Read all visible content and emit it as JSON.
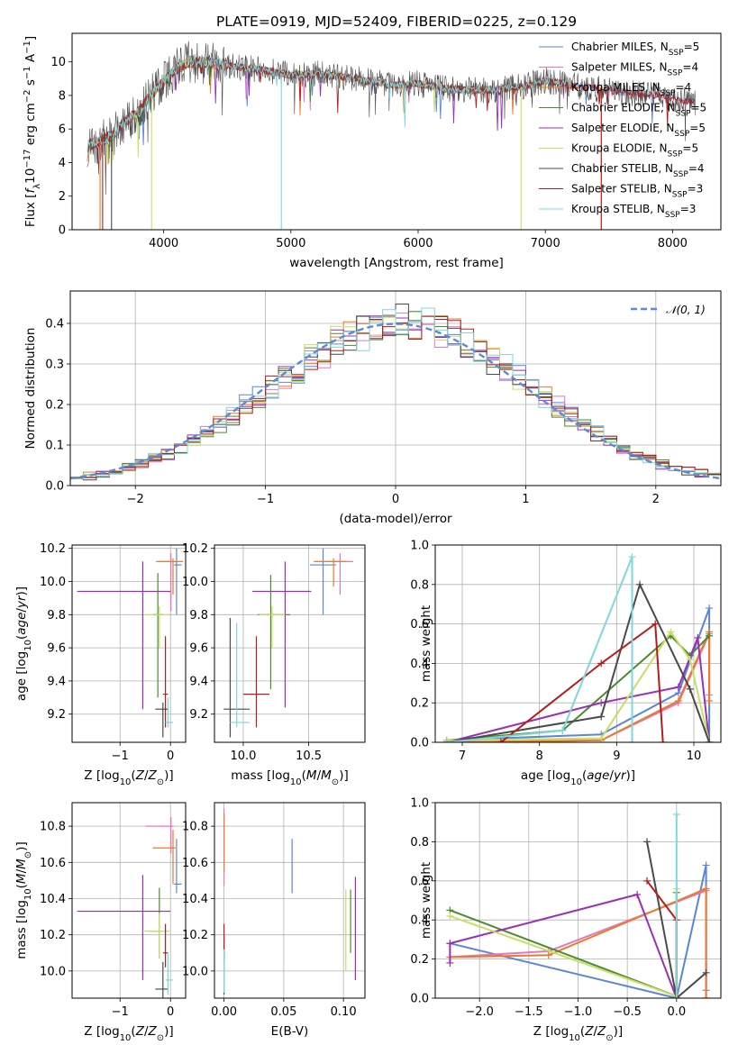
{
  "title": "PLATE=0919, MJD=52409, FIBERID=0225, z=0.129",
  "colors": {
    "chabrier_miles": "#5b86d6",
    "salpeter_miles": "#e377c2",
    "kroupa_miles": "#ec7a2a",
    "chabrier_elodie": "#4c8a2f",
    "salpeter_elodie": "#9b2fb5",
    "kroupa_elodie": "#c5e063",
    "chabrier_stelib": "#4a4a4a",
    "salpeter_stelib": "#b31d1d",
    "kroupa_stelib": "#7fd6dc",
    "normal": "#5b8ad6"
  },
  "chart_data": [
    {
      "id": "spectrum",
      "type": "line",
      "title": "PLATE=0919, MJD=52409, FIBERID=0225, z=0.129",
      "xlabel": "wavelength [Angstrom, rest frame]",
      "ylabel": "Flux [f_λ 10^-17 erg cm^-2 s^-1 A^-1]",
      "xlim": [
        3280,
        8380
      ],
      "ylim": [
        0,
        11.7
      ],
      "xticks": [
        "4000",
        "5000",
        "6000",
        "7000",
        "8000"
      ],
      "yticks": [
        "0",
        "2",
        "4",
        "6",
        "8",
        "10"
      ],
      "grid": false,
      "legend_position": "top-right",
      "data_trend": {
        "x": [
          3400,
          3500,
          3600,
          3700,
          3800,
          3900,
          4000,
          4100,
          4200,
          4400,
          4600,
          4800,
          5000,
          5200,
          5500,
          5800,
          6000,
          6200,
          6500,
          6800,
          7000,
          7300,
          7600,
          7900,
          8150
        ],
        "y": [
          5.0,
          5.3,
          5.6,
          6.5,
          7.0,
          8.0,
          8.8,
          9.6,
          10.0,
          9.9,
          9.7,
          9.5,
          9.2,
          9.3,
          9.0,
          8.6,
          8.7,
          8.4,
          8.3,
          8.5,
          8.9,
          8.5,
          8.2,
          8.0,
          7.6
        ]
      },
      "series": [
        {
          "name": "Chabrier MILES, N$_{SSP}$=5",
          "label_main": "Chabrier MILES, N",
          "label_sub": "SSP",
          "label_end": "=5"
        },
        {
          "name": "Salpeter MILES, N$_{SSP}$=4",
          "label_main": "Salpeter MILES, N",
          "label_sub": "SSP",
          "label_end": "=4"
        },
        {
          "name": "Kroupa MILES, N$_{SSP}$=4",
          "label_main": "Kroupa MILES, N",
          "label_sub": "SSP",
          "label_end": "=4"
        },
        {
          "name": "Chabrier ELODIE, N$_{SSP}$=5",
          "label_main": "Chabrier ELODIE, N",
          "label_sub": "SSP",
          "label_end": "=5"
        },
        {
          "name": "Salpeter ELODIE, N$_{SSP}$=5",
          "label_main": "Salpeter ELODIE, N",
          "label_sub": "SSP",
          "label_end": "=5"
        },
        {
          "name": "Kroupa ELODIE, N$_{SSP}$=5",
          "label_main": "Kroupa ELODIE, N",
          "label_sub": "SSP",
          "label_end": "=5"
        },
        {
          "name": "Chabrier STELIB, N$_{SSP}$=4",
          "label_main": "Chabrier STELIB, N",
          "label_sub": "SSP",
          "label_end": "=4"
        },
        {
          "name": "Salpeter STELIB, N$_{SSP}$=3",
          "label_main": "Salpeter STELIB, N",
          "label_sub": "SSP",
          "label_end": "=3"
        },
        {
          "name": "Kroupa STELIB, N$_{SSP}$=3",
          "label_main": "Kroupa STELIB, N",
          "label_sub": "SSP",
          "label_end": "=3"
        }
      ]
    },
    {
      "id": "residuals",
      "type": "line",
      "xlabel": "(data-model)/error",
      "ylabel": "Normed distribution",
      "xlim": [
        -2.5,
        2.5
      ],
      "ylim": [
        0,
        0.48
      ],
      "xticks": [
        "−2",
        "−1",
        "0",
        "1",
        "2"
      ],
      "yticks": [
        "0.0",
        "0.1",
        "0.2",
        "0.3",
        "0.4"
      ],
      "grid": true,
      "legend_position": "top-right",
      "series": [
        {
          "name": "$\\mathcal{N}(0,1)$",
          "label": "𝒩(0, 1)",
          "style": "dashed"
        }
      ],
      "histograms": "9 step histograms, bin width 0.1, following N(0,1) with peak ≈0.40–0.45 near 0"
    },
    {
      "id": "age_vs_Z",
      "type": "scatter",
      "xlabel": "Z [log10(Z/Z⊙)]",
      "ylabel": "age [log10(age/yr)]",
      "xlim": [
        -1.95,
        0.3
      ],
      "ylim": [
        9.03,
        10.22
      ],
      "xticks": [
        "−1",
        "0"
      ],
      "yticks": [
        "9.2",
        "9.4",
        "9.6",
        "9.8",
        "10.0",
        "10.2"
      ],
      "grid": true,
      "points": [
        {
          "x": 0.12,
          "y": 10.1,
          "xerr": [
            0.05,
            0.1
          ],
          "yerr": [
            0.3,
            0.1
          ]
        },
        {
          "x": 0.01,
          "y": 10.12,
          "xerr": [
            0.3,
            0.05
          ],
          "yerr": [
            0.3,
            0.05
          ]
        },
        {
          "x": 0.05,
          "y": 10.12,
          "xerr": [
            0.3,
            0.2
          ],
          "yerr": [
            0.2,
            0.02
          ]
        },
        {
          "x": -0.25,
          "y": 9.8,
          "xerr": [
            0.1,
            0.1
          ],
          "yerr": [
            0.5,
            0.25
          ]
        },
        {
          "x": -0.55,
          "y": 9.94,
          "xerr": [
            1.3,
            0.55
          ],
          "yerr": [
            0.71,
            0.18
          ]
        },
        {
          "x": -0.22,
          "y": 9.8,
          "xerr": [
            0.3,
            0.2
          ],
          "yerr": [
            0.2,
            0.05
          ]
        },
        {
          "x": -0.15,
          "y": 9.23,
          "xerr": [
            0.15,
            0.1
          ],
          "yerr": [
            0.17,
            0.04
          ]
        },
        {
          "x": -0.1,
          "y": 9.32,
          "xerr": [
            0.05,
            0.05
          ],
          "yerr": [
            0.2,
            0.35
          ]
        },
        {
          "x": -0.05,
          "y": 9.15,
          "xerr": [
            0.05,
            0.1
          ],
          "yerr": [
            0.03,
            0.15
          ]
        }
      ]
    },
    {
      "id": "age_vs_mass",
      "type": "scatter",
      "xlabel": "mass [log10(M/M⊙)]",
      "ylabel": "",
      "xlim": [
        9.78,
        10.93
      ],
      "ylim": [
        9.03,
        10.22
      ],
      "xticks": [
        "10.0",
        "10.5"
      ],
      "yticks": [
        "9.2",
        "9.4",
        "9.6",
        "9.8",
        "10.0",
        "10.2"
      ],
      "grid": true,
      "points": [
        {
          "x": 10.61,
          "y": 10.1,
          "xerr": [
            0.1,
            0.1
          ],
          "yerr": [
            0.3,
            0.1
          ]
        },
        {
          "x": 10.74,
          "y": 10.12,
          "xerr": [
            0.15,
            0.1
          ],
          "yerr": [
            0.2,
            0.05
          ]
        },
        {
          "x": 10.69,
          "y": 10.12,
          "xerr": [
            0.15,
            0.1
          ],
          "yerr": [
            0.15,
            0.02
          ]
        },
        {
          "x": 10.21,
          "y": 9.8,
          "xerr": [
            0.1,
            0.15
          ],
          "yerr": [
            0.45,
            0.24
          ]
        },
        {
          "x": 10.32,
          "y": 9.94,
          "xerr": [
            0.25,
            0.2
          ],
          "yerr": [
            0.7,
            0.18
          ]
        },
        {
          "x": 10.22,
          "y": 9.8,
          "xerr": [
            0.1,
            0.1
          ],
          "yerr": [
            0.2,
            0.05
          ]
        },
        {
          "x": 9.9,
          "y": 9.23,
          "xerr": [
            0.05,
            0.15
          ],
          "yerr": [
            0.17,
            0.55
          ]
        },
        {
          "x": 10.1,
          "y": 9.32,
          "xerr": [
            0.1,
            0.1
          ],
          "yerr": [
            0.2,
            0.35
          ]
        },
        {
          "x": 9.95,
          "y": 9.15,
          "xerr": [
            0.05,
            0.1
          ],
          "yerr": [
            0.03,
            0.6
          ]
        }
      ]
    },
    {
      "id": "massweight_vs_age",
      "type": "line",
      "xlabel": "age [log10(age/yr)]",
      "ylabel": "mass weight",
      "xlim": [
        6.65,
        10.35
      ],
      "ylim": [
        0,
        1.0
      ],
      "xticks": [
        "7",
        "8",
        "9",
        "10"
      ],
      "yticks": [
        "0.0",
        "0.2",
        "0.4",
        "0.6",
        "0.8",
        "1.0"
      ],
      "grid": true,
      "series": [
        {
          "name": "Chabrier MILES",
          "x": [
            6.8,
            8.8,
            9.8,
            10.2,
            10.2
          ],
          "y": [
            0.01,
            0.04,
            0.25,
            0.68,
            0.0
          ]
        },
        {
          "name": "Salpeter MILES",
          "x": [
            6.8,
            8.8,
            9.8,
            10.2,
            10.2
          ],
          "y": [
            0.0,
            0.01,
            0.2,
            0.55,
            0.24
          ]
        },
        {
          "name": "Kroupa MILES",
          "x": [
            6.8,
            8.8,
            9.8,
            10.2,
            10.2
          ],
          "y": [
            0.0,
            0.01,
            0.21,
            0.56,
            0.21
          ]
        },
        {
          "name": "Chabrier ELODIE",
          "x": [
            6.8,
            8.3,
            9.7,
            9.95,
            10.2
          ],
          "y": [
            0.01,
            0.06,
            0.54,
            0.44,
            0.54
          ]
        },
        {
          "name": "Salpeter ELODIE",
          "x": [
            6.8,
            8.8,
            9.8,
            10.05,
            10.2
          ],
          "y": [
            0.0,
            0.2,
            0.28,
            0.53,
            0.0
          ]
        },
        {
          "name": "Kroupa ELODIE",
          "x": [
            6.8,
            8.8,
            9.7,
            9.95,
            10.2
          ],
          "y": [
            0.01,
            0.02,
            0.56,
            0.42,
            0.0
          ]
        },
        {
          "name": "Chabrier STELIB",
          "x": [
            6.8,
            8.8,
            9.3,
            9.95,
            10.2
          ],
          "y": [
            0.0,
            0.13,
            0.8,
            0.27,
            0.0
          ]
        },
        {
          "name": "Salpeter STELIB",
          "x": [
            7.5,
            8.8,
            9.5,
            9.6
          ],
          "y": [
            0.0,
            0.4,
            0.6,
            0.0
          ]
        },
        {
          "name": "Kroupa STELIB",
          "x": [
            6.8,
            8.3,
            9.2,
            9.2
          ],
          "y": [
            0.0,
            0.06,
            0.94,
            0.0
          ]
        }
      ]
    },
    {
      "id": "mass_vs_Z",
      "type": "scatter",
      "xlabel": "Z [log10(Z/Z⊙)]",
      "ylabel": "mass [log10(M/M⊙)]",
      "xlim": [
        -1.95,
        0.3
      ],
      "ylim": [
        9.85,
        10.93
      ],
      "xticks": [
        "−1",
        "0"
      ],
      "yticks": [
        "10.0",
        "10.2",
        "10.4",
        "10.6",
        "10.8"
      ],
      "grid": true,
      "points": [
        {
          "x": 0.12,
          "y": 10.48,
          "xerr": [
            0.05,
            0.1
          ],
          "yerr": [
            0.05,
            0.25
          ]
        },
        {
          "x": 0.01,
          "y": 10.8,
          "xerr": [
            0.5,
            0.05
          ],
          "yerr": [
            0.15,
            0.05
          ]
        },
        {
          "x": 0.05,
          "y": 10.68,
          "xerr": [
            0.4,
            0.05
          ],
          "yerr": [
            0.2,
            0.1
          ]
        },
        {
          "x": -0.22,
          "y": 10.22,
          "xerr": [
            0.2,
            0.05
          ],
          "yerr": [
            0.15,
            0.24
          ]
        },
        {
          "x": -0.55,
          "y": 10.33,
          "xerr": [
            1.3,
            0.55
          ],
          "yerr": [
            0.38,
            0.2
          ]
        },
        {
          "x": -0.22,
          "y": 10.22,
          "xerr": [
            0.3,
            0.2
          ],
          "yerr": [
            0.15,
            0.1
          ]
        },
        {
          "x": -0.15,
          "y": 9.9,
          "xerr": [
            0.15,
            0.1
          ],
          "yerr": [
            0.1,
            0.15
          ]
        },
        {
          "x": -0.1,
          "y": 10.1,
          "xerr": [
            0.05,
            0.05
          ],
          "yerr": [
            0.08,
            0.16
          ]
        },
        {
          "x": -0.05,
          "y": 9.95,
          "xerr": [
            0.05,
            0.1
          ],
          "yerr": [
            0.08,
            0.15
          ]
        }
      ]
    },
    {
      "id": "mass_vs_ebv",
      "type": "scatter",
      "xlabel": "E(B-V)",
      "ylabel": "",
      "xlim": [
        -0.008,
        0.118
      ],
      "ylim": [
        9.85,
        10.93
      ],
      "xticks": [
        "0.00",
        "0.05",
        "0.10"
      ],
      "yticks": [
        "10.0",
        "10.2",
        "10.4",
        "10.6",
        "10.8"
      ],
      "grid": true,
      "points": [
        {
          "x": 0.057,
          "y": 10.58,
          "yerr": [
            0.15,
            0.15
          ]
        },
        {
          "x": 0.0,
          "y": 10.7,
          "yerr": [
            0.23,
            0.2
          ]
        },
        {
          "x": 0.0,
          "y": 10.75,
          "yerr": [
            0.2,
            0.12
          ]
        },
        {
          "x": 0.106,
          "y": 10.3,
          "yerr": [
            0.2,
            0.15
          ]
        },
        {
          "x": 0.11,
          "y": 10.25,
          "yerr": [
            0.3,
            0.27
          ]
        },
        {
          "x": 0.102,
          "y": 10.25,
          "yerr": [
            0.25,
            0.2
          ]
        },
        {
          "x": 0.0,
          "y": 10.05,
          "yerr": [
            0.18,
            0.15
          ]
        },
        {
          "x": 0.0,
          "y": 10.12,
          "yerr": [
            0.06,
            0.14
          ]
        },
        {
          "x": 0.0,
          "y": 10.0,
          "yerr": [
            0.12,
            0.12
          ]
        }
      ]
    },
    {
      "id": "massweight_vs_Z",
      "type": "line",
      "xlabel": "Z [log10(Z/Z⊙)]",
      "ylabel": "mass weight",
      "xlim": [
        -2.45,
        0.45
      ],
      "ylim": [
        0,
        1.0
      ],
      "xticks": [
        "−2.0",
        "−1.5",
        "−1.0",
        "−0.5",
        "0.0"
      ],
      "yticks": [
        "0.0",
        "0.2",
        "0.4",
        "0.6",
        "0.8",
        "1.0"
      ],
      "grid": true,
      "series": [
        {
          "name": "Chabrier MILES",
          "x": [
            -2.3,
            0.0,
            0.3,
            0.3
          ],
          "y": [
            0.28,
            0.0,
            0.68,
            0.04
          ]
        },
        {
          "name": "Salpeter MILES",
          "x": [
            -2.3,
            -1.3,
            0.3,
            0.3
          ],
          "y": [
            0.21,
            0.24,
            0.55,
            0.0
          ]
        },
        {
          "name": "Kroupa MILES",
          "x": [
            -2.3,
            -1.3,
            0.3,
            0.3
          ],
          "y": [
            0.21,
            0.22,
            0.56,
            0.0
          ]
        },
        {
          "name": "Chabrier ELODIE",
          "x": [
            -2.3,
            0.0,
            0.0
          ],
          "y": [
            0.45,
            0.01,
            0.54
          ]
        },
        {
          "name": "Salpeter ELODIE",
          "x": [
            -2.3,
            -2.3,
            -0.4,
            0.0
          ],
          "y": [
            0.18,
            0.28,
            0.53,
            0.0
          ]
        },
        {
          "name": "Kroupa ELODIE",
          "x": [
            -2.3,
            0.0,
            0.0
          ],
          "y": [
            0.42,
            0.01,
            0.56
          ]
        },
        {
          "name": "Chabrier STELIB",
          "x": [
            -0.3,
            0.0,
            0.3
          ],
          "y": [
            0.8,
            0.0,
            0.13
          ]
        },
        {
          "name": "Salpeter STELIB",
          "x": [
            -0.3,
            0.0,
            0.0
          ],
          "y": [
            0.6,
            0.4,
            0.0
          ]
        },
        {
          "name": "Kroupa STELIB",
          "x": [
            0.0,
            0.0
          ],
          "y": [
            0.94,
            0.0
          ]
        }
      ]
    }
  ]
}
